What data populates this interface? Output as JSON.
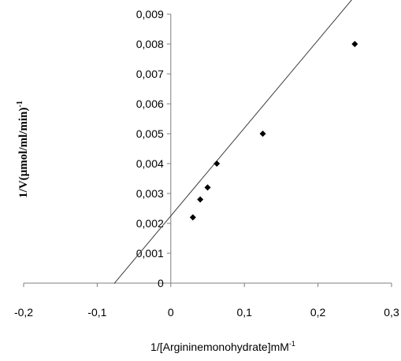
{
  "chart_data": {
    "type": "scatter",
    "xlabel": "1/[Argininemonohydrate]mM",
    "xlabel_superscript": "-1",
    "ylabel": "1/V(µmol/ml/min)",
    "ylabel_superscript": "-1",
    "xlim": [
      -0.2,
      0.3
    ],
    "ylim": [
      0,
      0.009
    ],
    "x_ticks": [
      -0.2,
      -0.1,
      0,
      0.1,
      0.2,
      0.3
    ],
    "x_tick_labels": [
      "-0,2",
      "-0,1",
      "0",
      "0,1",
      "0,2",
      "0,3"
    ],
    "y_ticks": [
      0,
      0.001,
      0.002,
      0.003,
      0.004,
      0.005,
      0.006,
      0.007,
      0.008,
      0.009
    ],
    "y_tick_labels": [
      "0",
      "0,001",
      "0,002",
      "0,003",
      "0,004",
      "0,005",
      "0,006",
      "0,007",
      "0,008",
      "0,009"
    ],
    "grid": false,
    "marker": "diamond",
    "points": [
      {
        "x": 0.03,
        "y": 0.0022
      },
      {
        "x": 0.04,
        "y": 0.0028
      },
      {
        "x": 0.05,
        "y": 0.0032
      },
      {
        "x": 0.0625,
        "y": 0.004
      },
      {
        "x": 0.125,
        "y": 0.005
      },
      {
        "x": 0.25,
        "y": 0.008
      }
    ],
    "trendline": {
      "type": "linear",
      "x_start": -0.077,
      "x_end": 0.25,
      "slope": 0.0294,
      "intercept": 0.00225
    },
    "colors": {
      "marker": "#000000",
      "line": "#3a3a3a",
      "axis": "#7f7f7f"
    }
  }
}
